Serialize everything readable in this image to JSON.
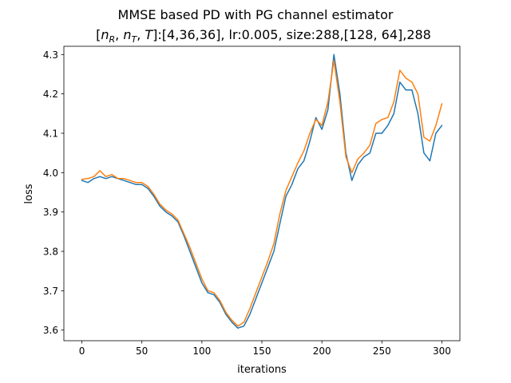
{
  "chart_data": {
    "type": "line",
    "title": "MMSE based PD with PG channel estimator",
    "subtitle_parts": [
      "[",
      "n",
      "R",
      ", ",
      "n",
      "T",
      ", ",
      "T",
      "]:[4,36,36], lr:0.005, size:288,[128, 64],288"
    ],
    "xlabel": "iterations",
    "ylabel": "loss",
    "xlim": [
      -15,
      315
    ],
    "ylim": [
      3.573,
      4.321
    ],
    "xticks": [
      0,
      50,
      100,
      150,
      200,
      250,
      300
    ],
    "yticks": [
      3.6,
      3.7,
      3.8,
      3.9,
      4.0,
      4.1,
      4.2,
      4.3
    ],
    "ytick_labels": [
      "3.6",
      "3.7",
      "3.8",
      "3.9",
      "4.0",
      "4.1",
      "4.2",
      "4.3"
    ],
    "grid": false,
    "series": [
      {
        "color": "#1f77b4",
        "points": [
          [
            0,
            3.98
          ],
          [
            5,
            3.975
          ],
          [
            10,
            3.985
          ],
          [
            15,
            3.99
          ],
          [
            20,
            3.985
          ],
          [
            25,
            3.99
          ],
          [
            30,
            3.985
          ],
          [
            35,
            3.98
          ],
          [
            40,
            3.975
          ],
          [
            45,
            3.97
          ],
          [
            50,
            3.97
          ],
          [
            55,
            3.96
          ],
          [
            60,
            3.94
          ],
          [
            65,
            3.915
          ],
          [
            70,
            3.9
          ],
          [
            75,
            3.89
          ],
          [
            80,
            3.875
          ],
          [
            85,
            3.84
          ],
          [
            90,
            3.8
          ],
          [
            95,
            3.76
          ],
          [
            100,
            3.72
          ],
          [
            105,
            3.695
          ],
          [
            110,
            3.69
          ],
          [
            115,
            3.67
          ],
          [
            120,
            3.64
          ],
          [
            125,
            3.62
          ],
          [
            130,
            3.605
          ],
          [
            135,
            3.61
          ],
          [
            140,
            3.64
          ],
          [
            145,
            3.68
          ],
          [
            150,
            3.72
          ],
          [
            155,
            3.76
          ],
          [
            160,
            3.8
          ],
          [
            165,
            3.87
          ],
          [
            170,
            3.94
          ],
          [
            175,
            3.97
          ],
          [
            180,
            4.01
          ],
          [
            185,
            4.03
          ],
          [
            190,
            4.08
          ],
          [
            195,
            4.14
          ],
          [
            200,
            4.11
          ],
          [
            205,
            4.16
          ],
          [
            210,
            4.3
          ],
          [
            215,
            4.2
          ],
          [
            220,
            4.05
          ],
          [
            225,
            3.98
          ],
          [
            230,
            4.02
          ],
          [
            235,
            4.04
          ],
          [
            240,
            4.05
          ],
          [
            245,
            4.1
          ],
          [
            250,
            4.1
          ],
          [
            255,
            4.12
          ],
          [
            260,
            4.15
          ],
          [
            265,
            4.23
          ],
          [
            270,
            4.21
          ],
          [
            275,
            4.21
          ],
          [
            280,
            4.15
          ],
          [
            285,
            4.05
          ],
          [
            290,
            4.03
          ],
          [
            295,
            4.1
          ],
          [
            300,
            4.12
          ]
        ]
      },
      {
        "color": "#ff7f0e",
        "points": [
          [
            0,
            3.983
          ],
          [
            5,
            3.985
          ],
          [
            10,
            3.99
          ],
          [
            15,
            4.005
          ],
          [
            20,
            3.99
          ],
          [
            25,
            3.995
          ],
          [
            30,
            3.985
          ],
          [
            35,
            3.985
          ],
          [
            40,
            3.98
          ],
          [
            45,
            3.975
          ],
          [
            50,
            3.975
          ],
          [
            55,
            3.965
          ],
          [
            60,
            3.945
          ],
          [
            65,
            3.92
          ],
          [
            70,
            3.905
          ],
          [
            75,
            3.895
          ],
          [
            80,
            3.88
          ],
          [
            85,
            3.845
          ],
          [
            90,
            3.81
          ],
          [
            95,
            3.77
          ],
          [
            100,
            3.73
          ],
          [
            105,
            3.7
          ],
          [
            110,
            3.695
          ],
          [
            115,
            3.675
          ],
          [
            120,
            3.645
          ],
          [
            125,
            3.625
          ],
          [
            130,
            3.61
          ],
          [
            135,
            3.62
          ],
          [
            140,
            3.655
          ],
          [
            145,
            3.695
          ],
          [
            150,
            3.735
          ],
          [
            155,
            3.775
          ],
          [
            160,
            3.82
          ],
          [
            165,
            3.895
          ],
          [
            170,
            3.955
          ],
          [
            175,
            3.99
          ],
          [
            180,
            4.025
          ],
          [
            185,
            4.055
          ],
          [
            190,
            4.1
          ],
          [
            195,
            4.135
          ],
          [
            200,
            4.12
          ],
          [
            205,
            4.18
          ],
          [
            210,
            4.285
          ],
          [
            215,
            4.18
          ],
          [
            220,
            4.04
          ],
          [
            225,
            4.0
          ],
          [
            230,
            4.035
          ],
          [
            235,
            4.05
          ],
          [
            240,
            4.07
          ],
          [
            245,
            4.125
          ],
          [
            250,
            4.135
          ],
          [
            255,
            4.14
          ],
          [
            260,
            4.18
          ],
          [
            265,
            4.26
          ],
          [
            270,
            4.24
          ],
          [
            275,
            4.23
          ],
          [
            280,
            4.2
          ],
          [
            285,
            4.09
          ],
          [
            290,
            4.08
          ],
          [
            295,
            4.12
          ],
          [
            300,
            4.175
          ]
        ]
      }
    ]
  }
}
